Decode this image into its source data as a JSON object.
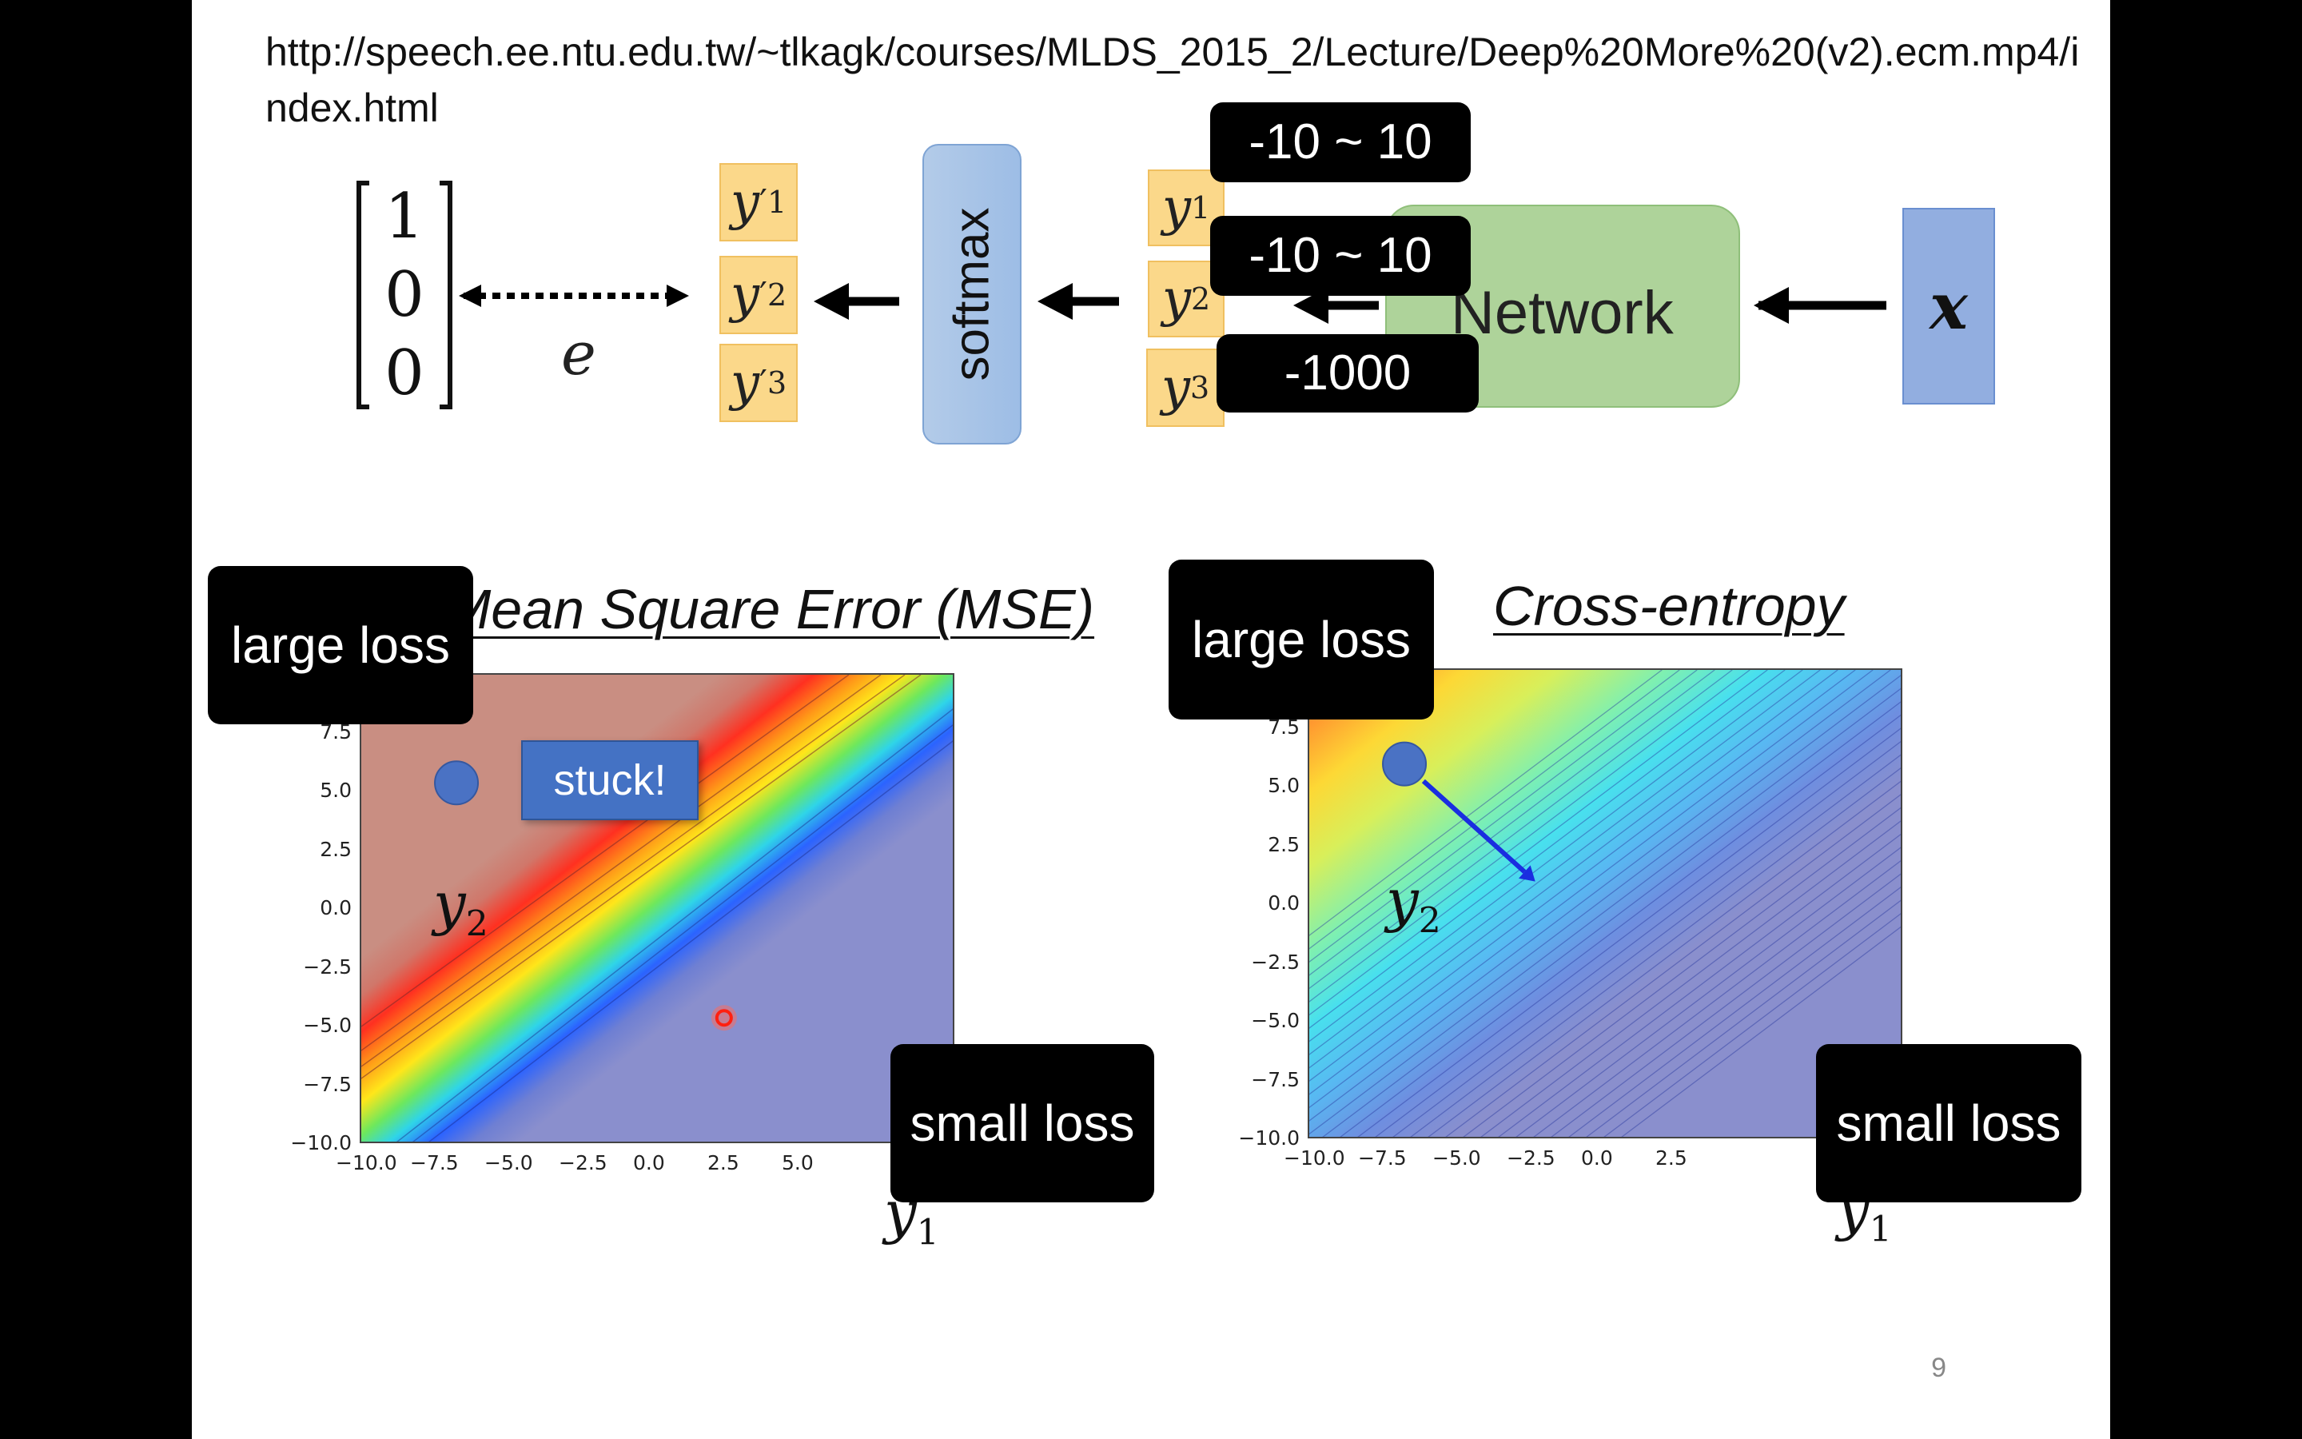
{
  "header": {
    "url": "http://speech.ee.ntu.edu.tw/~tlkagk/courses/MLDS_2015_2/Lecture/Deep%20More%20(v2).ecm.mp4/index.html"
  },
  "diagram": {
    "target_vector": [
      "1",
      "0",
      "0"
    ],
    "error_label": "e",
    "output_labels": [
      {
        "base": "y",
        "sup": "′",
        "sub": "1"
      },
      {
        "base": "y",
        "sup": "′",
        "sub": "2"
      },
      {
        "base": "y",
        "sup": "′",
        "sub": "3"
      }
    ],
    "softmax_label": "softmax",
    "logit_labels": [
      {
        "base": "y",
        "sub": "1"
      },
      {
        "base": "y",
        "sub": "2"
      },
      {
        "base": "y",
        "sub": "3"
      }
    ],
    "network_label": "Network",
    "input_label": "x",
    "range_tags": [
      "-10 ~ 10",
      "-10 ~ 10",
      "-1000"
    ]
  },
  "annotations": {
    "large_loss": "large loss",
    "small_loss": "small loss",
    "stuck": "stuck!"
  },
  "chart_data": [
    {
      "type": "heatmap",
      "title": "Mean Square Error (MSE)",
      "xlabel": {
        "base": "y",
        "sub": "1"
      },
      "ylabel": {
        "base": "y",
        "sub": "2"
      },
      "xlim": [
        -10,
        10
      ],
      "ylim": [
        -10,
        10
      ],
      "xticks": [
        "−10.0",
        "−7.5",
        "−5.0",
        "−2.5",
        "0.0",
        "2.5",
        "5.0"
      ],
      "yticks": [
        "7.5",
        "5.0",
        "2.5",
        "0.0",
        "−2.5",
        "−5.0",
        "−7.5",
        "−10.0"
      ],
      "start_point": {
        "x": -6.8,
        "y": 5.4
      },
      "target_point": {
        "x": 2.2,
        "y": -4.6
      }
    },
    {
      "type": "heatmap",
      "title": "Cross-entropy",
      "xlabel": {
        "base": "y",
        "sub": "1"
      },
      "ylabel": {
        "base": "y",
        "sub": "2"
      },
      "xlim": [
        -10,
        10
      ],
      "ylim": [
        -10,
        10
      ],
      "xticks": [
        "−10.0",
        "−7.5",
        "−5.0",
        "−2.5",
        "0.0",
        "2.5"
      ],
      "yticks": [
        "7.5",
        "5.0",
        "2.5",
        "0.0",
        "−2.5",
        "−5.0",
        "−7.5",
        "−10.0"
      ],
      "start_point": {
        "x": -6.8,
        "y": 6.0
      },
      "arrow_end": {
        "x": -2.4,
        "y": 1.0
      }
    }
  ]
}
